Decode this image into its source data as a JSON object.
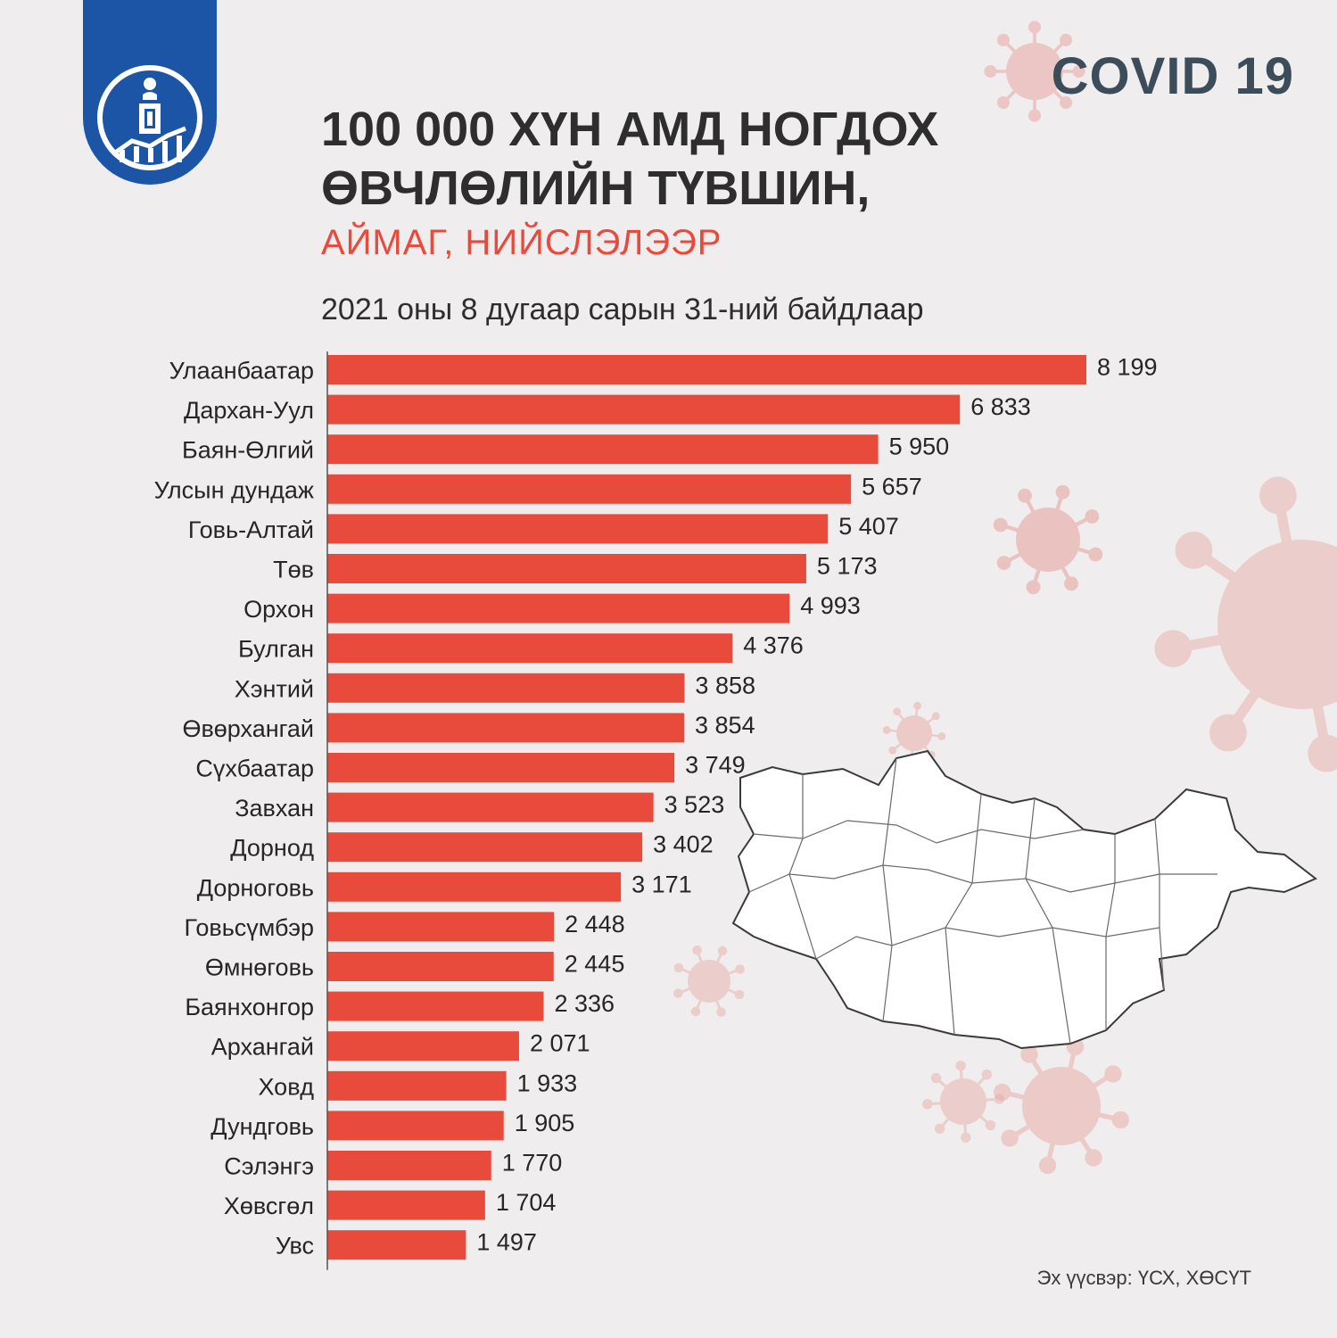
{
  "header": {
    "badge": "COVID 19",
    "title_line1": "100 000 ХҮН АМД НОГДОХ",
    "title_line2": "ӨВЧЛӨЛИЙН ТҮВШИН,",
    "subtitle": "АЙМАГ, НИЙСЛЭЛЭЭР",
    "date_note": "2021 оны 8 дугаар сарын 31-ний байдлаар"
  },
  "footer": {
    "source": "Эх үүсвэр: ҮСХ, ХӨСҮТ"
  },
  "colors": {
    "bar": "#e84a3c",
    "accent_text": "#e84a3c",
    "logo_blue": "#1d55a6",
    "background": "#efeded",
    "virus_decor": "#e8a8a4"
  },
  "icons": [
    "state-emblem-icon",
    "virus-icon",
    "mongolia-map"
  ],
  "chart_data": {
    "type": "bar",
    "orientation": "horizontal",
    "title": "100 000 ХҮН АМД НОГДОХ ӨВЧЛӨЛИЙН ТҮВШИН, АЙМАГ, НИЙСЛЭЛЭЭР",
    "xlabel": "",
    "ylabel": "",
    "grid": false,
    "xlim": [
      0,
      8199
    ],
    "categories": [
      "Улаанбаатар",
      "Дархан-Уул",
      "Баян-Өлгий",
      "Улсын дундаж",
      "Говь-Алтай",
      "Төв",
      "Орхон",
      "Булган",
      "Хэнтий",
      "Өвөрхангай",
      "Сүхбаатар",
      "Завхан",
      "Дорнод",
      "Дорноговь",
      "Говьсүмбэр",
      "Өмнөговь",
      "Баянхонгор",
      "Архангай",
      "Ховд",
      "Дундговь",
      "Сэлэнгэ",
      "Хөвсгөл",
      "Увс"
    ],
    "values": [
      8199,
      6833,
      5950,
      5657,
      5407,
      5173,
      4993,
      4376,
      3858,
      3854,
      3749,
      3523,
      3402,
      3171,
      2448,
      2445,
      2336,
      2071,
      1933,
      1905,
      1770,
      1704,
      1497
    ],
    "value_labels": [
      "8 199",
      "6 833",
      "5 950",
      "5 657",
      "5 407",
      "5 173",
      "4 993",
      "4 376",
      "3 858",
      "3 854",
      "3 749",
      "3 523",
      "3 402",
      "3 171",
      "2 448",
      "2 445",
      "2 336",
      "2 071",
      "1 933",
      "1 905",
      "1 770",
      "1 704",
      "1 497"
    ]
  }
}
